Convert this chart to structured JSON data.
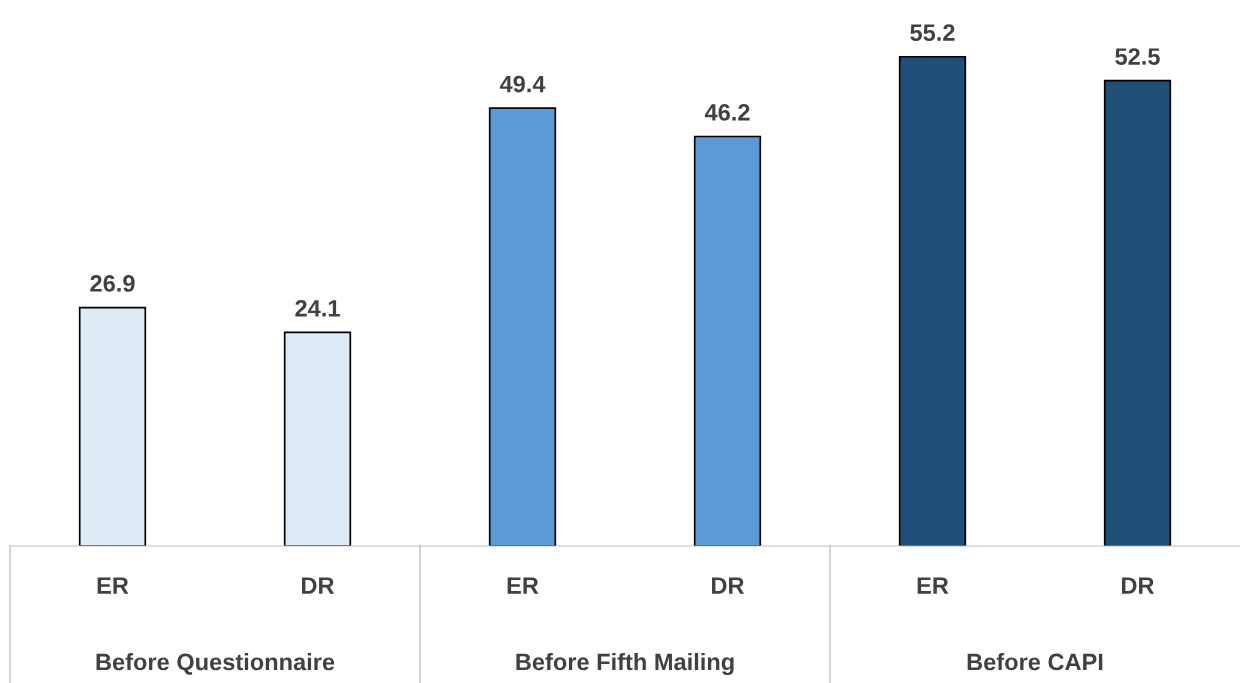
{
  "chart_data": {
    "type": "bar",
    "categories": [
      "ER",
      "DR",
      "ER",
      "DR",
      "ER",
      "DR"
    ],
    "values": [
      26.9,
      24.1,
      49.4,
      46.2,
      55.2,
      52.5
    ],
    "colors": [
      "#deebf7",
      "#deebf7",
      "#5b9bd5",
      "#5b9bd5",
      "#1f4e79",
      "#1f4e79"
    ],
    "data_labels": true,
    "tick_labels": "x",
    "annotations": [
      "Before Questionnaire",
      "Before Fifth Mailing",
      "Before CAPI"
    ]
  }
}
